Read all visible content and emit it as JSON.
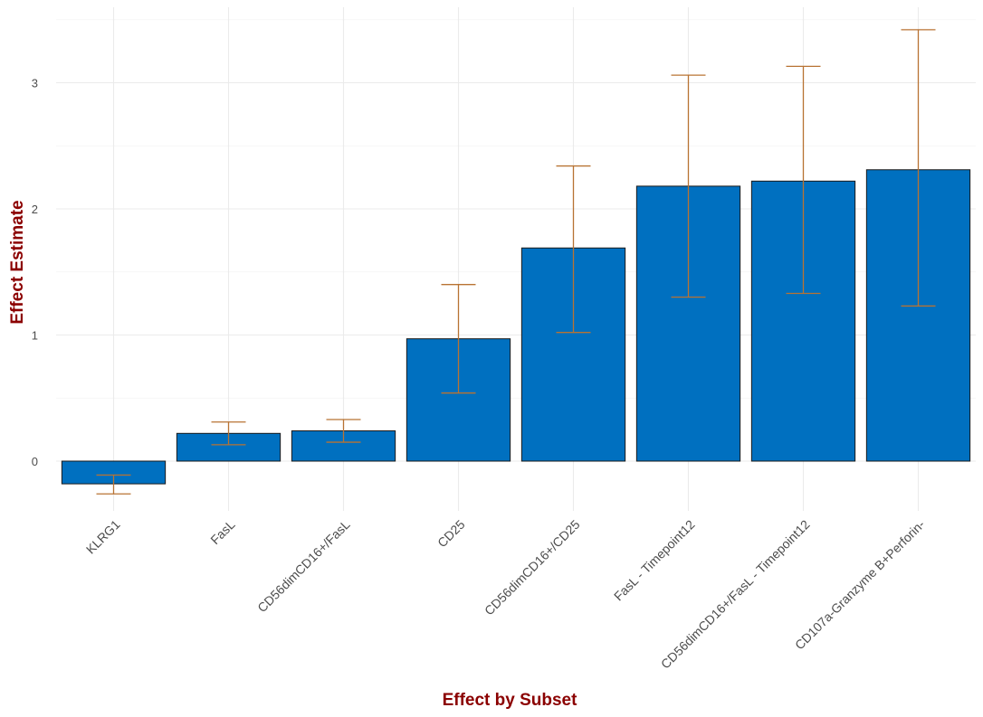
{
  "chart_data": {
    "type": "bar",
    "title": "",
    "xlabel": "Effect by Subset",
    "ylabel": "Effect Estimate",
    "categories": [
      "KLRG1",
      "FasL",
      "CD56dimCD16+/FasL",
      "CD25",
      "CD56dimCD16+/CD25",
      "FasL - Timepoint12",
      "CD56dimCD16+/FasL - Timepoint12",
      "CD107a-Granzyme B+Perforin-"
    ],
    "values": [
      -0.18,
      0.22,
      0.24,
      0.97,
      1.69,
      2.18,
      2.22,
      2.31
    ],
    "error_low": [
      -0.26,
      0.13,
      0.15,
      0.54,
      1.02,
      1.3,
      1.33,
      1.23
    ],
    "error_high": [
      -0.11,
      0.31,
      0.33,
      1.4,
      2.34,
      3.06,
      3.13,
      3.42
    ],
    "ylim": [
      -0.37,
      3.55
    ],
    "yticks": [
      0,
      1,
      2,
      3
    ],
    "grid": true,
    "legend": "none",
    "colors": {
      "bar_fill": "#0070C0",
      "bar_stroke": "#1a1a1a",
      "error_bar": "#B87333",
      "grid_major": "#EBEBEB",
      "grid_minor": "#F3F3F3",
      "axis_title": "#8B0000"
    }
  }
}
